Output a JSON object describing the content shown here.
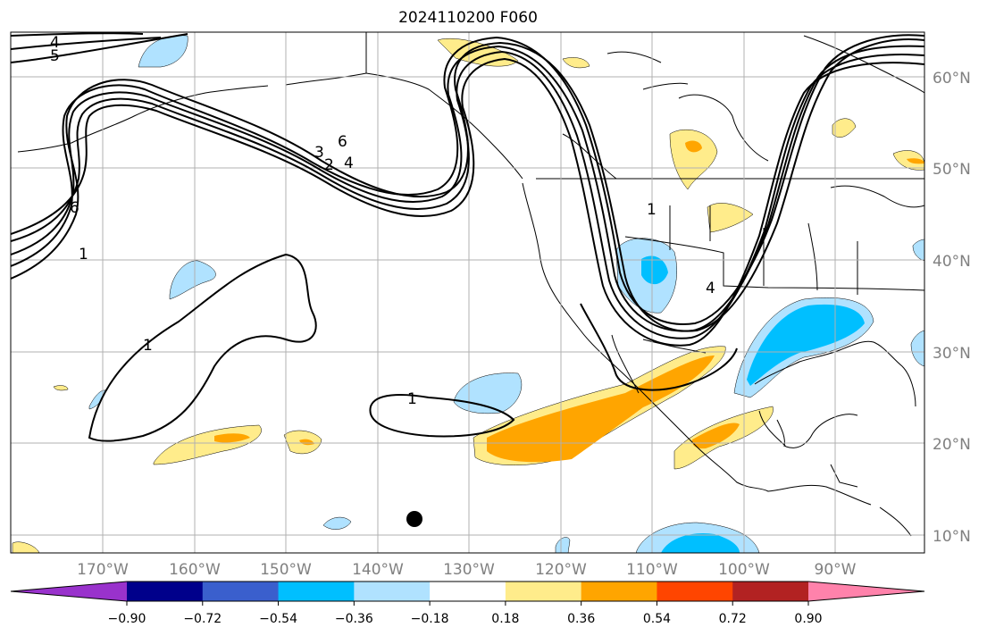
{
  "title": "2024110200 F060",
  "lat_labels": [
    "60°N",
    "50°N",
    "40°N",
    "30°N",
    "20°N",
    "10°N"
  ],
  "lon_labels": [
    "170°W",
    "160°W",
    "150°W",
    "140°W",
    "130°W",
    "120°W",
    "110°W",
    "100°W",
    "90°W"
  ],
  "colorbar": {
    "colors": [
      "#9932cc",
      "#00008b",
      "#3a5fcd",
      "#00bfff",
      "#b0e2ff",
      "#ffffff",
      "#ffec8b",
      "#ffa500",
      "#ff4500",
      "#b22222",
      "#ff82ab"
    ],
    "ticks": [
      "−0.90",
      "−0.72",
      "−0.54",
      "−0.36",
      "−0.18",
      "0.18",
      "0.36",
      "0.54",
      "0.72",
      "0.90"
    ]
  },
  "contour_labels": [
    "4",
    "5",
    "6",
    "1",
    "3",
    "2",
    "4",
    "6",
    "1",
    "1",
    "1",
    "4"
  ],
  "colors": {
    "grid": "#b0b0b0",
    "coast": "#000000",
    "contour": "#000000"
  }
}
